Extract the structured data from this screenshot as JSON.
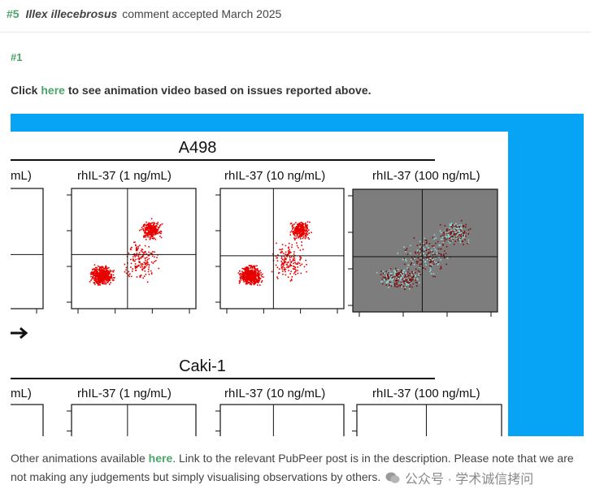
{
  "header": {
    "comment_number": "#5",
    "username": "Illex illecebrosus",
    "status_text": "comment accepted March 2025"
  },
  "comment": {
    "label": "#1",
    "intro_prefix": "Click",
    "intro_link": "here",
    "intro_suffix": "to see animation video based on issues reported above."
  },
  "figure": {
    "top_title": "A498",
    "bottom_title": "Caki-1",
    "top_panels": [
      "mL)",
      "rhIL-37 (1 ng/mL)",
      "rhIL-37 (10 ng/mL)",
      "rhIL-37 (100 ng/mL)"
    ],
    "bottom_panels": [
      "mL)",
      "rhIL-37 (1 ng/mL)",
      "rhIL-37 (10 ng/mL)",
      "rhIL-37 (100 ng/mL)"
    ],
    "colors": {
      "dots": "#e60000",
      "overlay_bg": "#7d7d7d",
      "overlay_dots_a": "#7a1010",
      "overlay_dots_b": "#8fd8d8",
      "frame": "#07a3f5"
    }
  },
  "footer": {
    "prefix": "Other animations available",
    "link": "here",
    "suffix": ". Link to the relevant PubPeer post is in the description. Please note that we are not making any judgements but simply visualising observations by others."
  },
  "watermark": {
    "text": "公众号 · 学术诚信拷问"
  }
}
